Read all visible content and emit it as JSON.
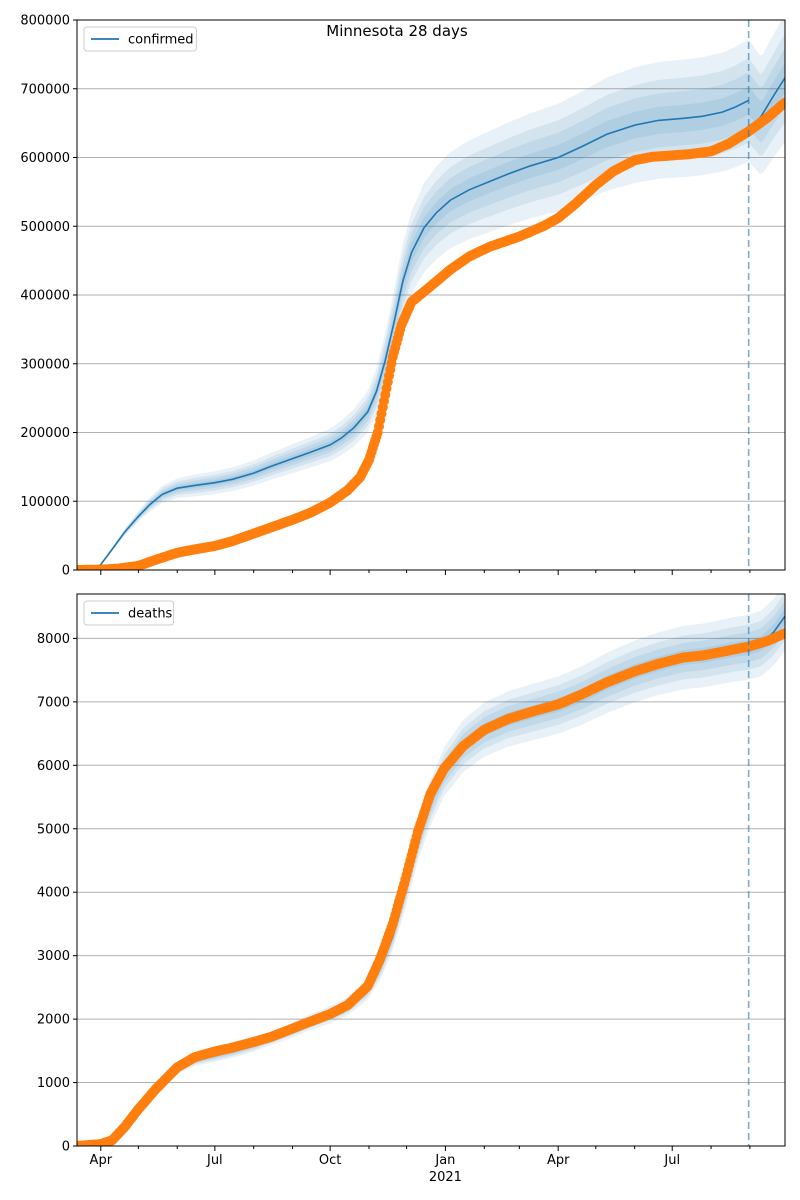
{
  "figure": {
    "title": "Minnesota 28 days"
  },
  "chart_data": [
    {
      "type": "line",
      "panel": "top",
      "legend": "top-left",
      "grid": "horizontal",
      "xlim": [
        "2020-03-13",
        "2021-09-29"
      ],
      "ylim": [
        0,
        800000
      ],
      "yticks": [
        0,
        100000,
        200000,
        300000,
        400000,
        500000,
        600000,
        700000,
        800000
      ],
      "xtick_labels_visible": false,
      "vline": "2021-08-31",
      "series": [
        {
          "name": "confirmed",
          "color": "#1f77b4",
          "kind": "model-line-with-bands",
          "points": [
            [
              "2020-03-13",
              0
            ],
            [
              "2020-03-26",
              1000
            ],
            [
              "2020-04-01",
              8000
            ],
            [
              "2020-04-10",
              30000
            ],
            [
              "2020-04-20",
              55000
            ],
            [
              "2020-05-01",
              78000
            ],
            [
              "2020-05-10",
              95000
            ],
            [
              "2020-05-20",
              110000
            ],
            [
              "2020-06-01",
              119000
            ],
            [
              "2020-06-15",
              123000
            ],
            [
              "2020-07-01",
              127000
            ],
            [
              "2020-07-15",
              132000
            ],
            [
              "2020-08-01",
              141000
            ],
            [
              "2020-08-15",
              151000
            ],
            [
              "2020-09-01",
              162000
            ],
            [
              "2020-09-15",
              171000
            ],
            [
              "2020-10-01",
              182000
            ],
            [
              "2020-10-10",
              192000
            ],
            [
              "2020-10-20",
              207000
            ],
            [
              "2020-10-31",
              230000
            ],
            [
              "2020-11-07",
              260000
            ],
            [
              "2020-11-14",
              305000
            ],
            [
              "2020-11-21",
              360000
            ],
            [
              "2020-11-28",
              420000
            ],
            [
              "2020-12-05",
              462000
            ],
            [
              "2020-12-15",
              498000
            ],
            [
              "2020-12-25",
              520000
            ],
            [
              "2021-01-05",
              538000
            ],
            [
              "2021-01-20",
              553000
            ],
            [
              "2021-02-05",
              565000
            ],
            [
              "2021-02-20",
              576000
            ],
            [
              "2021-03-10",
              588000
            ],
            [
              "2021-04-01",
              600000
            ],
            [
              "2021-04-20",
              616000
            ],
            [
              "2021-05-10",
              634000
            ],
            [
              "2021-06-01",
              647000
            ],
            [
              "2021-06-20",
              654000
            ],
            [
              "2021-07-10",
              657000
            ],
            [
              "2021-07-25",
              660000
            ],
            [
              "2021-08-10",
              666000
            ],
            [
              "2021-08-20",
              673000
            ],
            [
              "2021-08-31",
              683000
            ]
          ],
          "forecast_points": [
            [
              "2021-08-31",
              640000
            ],
            [
              "2021-09-10",
              660000
            ],
            [
              "2021-09-20",
              690000
            ],
            [
              "2021-09-29",
              716000
            ]
          ],
          "band_half_widths_fraction": [
            0.03,
            0.06,
            0.09,
            0.13
          ]
        },
        {
          "name": "",
          "color": "#ff7f0e",
          "kind": "observed-points",
          "points": [
            [
              "2020-03-13",
              0
            ],
            [
              "2020-04-01",
              600
            ],
            [
              "2020-04-15",
              2000
            ],
            [
              "2020-05-01",
              6000
            ],
            [
              "2020-05-15",
              15000
            ],
            [
              "2020-06-01",
              25000
            ],
            [
              "2020-06-15",
              30000
            ],
            [
              "2020-07-01",
              35000
            ],
            [
              "2020-07-15",
              42000
            ],
            [
              "2020-08-01",
              53000
            ],
            [
              "2020-08-15",
              62000
            ],
            [
              "2020-09-01",
              73000
            ],
            [
              "2020-09-15",
              83000
            ],
            [
              "2020-10-01",
              98000
            ],
            [
              "2020-10-15",
              116000
            ],
            [
              "2020-10-25",
              135000
            ],
            [
              "2020-11-01",
              160000
            ],
            [
              "2020-11-08",
              200000
            ],
            [
              "2020-11-14",
              255000
            ],
            [
              "2020-11-20",
              310000
            ],
            [
              "2020-11-27",
              357000
            ],
            [
              "2020-12-05",
              390000
            ],
            [
              "2020-12-15",
              405000
            ],
            [
              "2020-12-25",
              420000
            ],
            [
              "2021-01-05",
              437000
            ],
            [
              "2021-01-20",
              456000
            ],
            [
              "2021-02-05",
              470000
            ],
            [
              "2021-03-01",
              485000
            ],
            [
              "2021-03-20",
              500000
            ],
            [
              "2021-04-01",
              512000
            ],
            [
              "2021-04-15",
              533000
            ],
            [
              "2021-05-01",
              560000
            ],
            [
              "2021-05-15",
              580000
            ],
            [
              "2021-06-01",
              596000
            ],
            [
              "2021-06-15",
              601000
            ],
            [
              "2021-07-01",
              603000
            ],
            [
              "2021-07-15",
              605000
            ],
            [
              "2021-08-01",
              609000
            ],
            [
              "2021-08-15",
              620000
            ],
            [
              "2021-08-31",
              638000
            ],
            [
              "2021-09-15",
              658000
            ],
            [
              "2021-09-29",
              680000
            ]
          ]
        }
      ]
    },
    {
      "type": "line",
      "panel": "bottom",
      "legend": "top-left",
      "grid": "horizontal",
      "xlim": [
        "2020-03-13",
        "2021-09-29"
      ],
      "ylim": [
        0,
        8700
      ],
      "yticks": [
        0,
        1000,
        2000,
        3000,
        4000,
        5000,
        6000,
        7000,
        8000
      ],
      "xticks": [
        {
          "date": "2020-04-01",
          "label": "Apr"
        },
        {
          "date": "2020-07-01",
          "label": "Jul"
        },
        {
          "date": "2020-10-01",
          "label": "Oct"
        },
        {
          "date": "2021-01-01",
          "label": "Jan"
        },
        {
          "date": "2021-04-01",
          "label": "Apr"
        },
        {
          "date": "2021-07-01",
          "label": "Jul"
        }
      ],
      "year_label": "2021",
      "vline": "2021-08-31",
      "series": [
        {
          "name": "deaths",
          "color": "#1f77b4",
          "kind": "model-line-with-bands",
          "points": [
            [
              "2020-03-13",
              0
            ],
            [
              "2020-04-01",
              30
            ],
            [
              "2020-04-10",
              100
            ],
            [
              "2020-04-20",
              300
            ],
            [
              "2020-05-01",
              600
            ],
            [
              "2020-05-15",
              900
            ],
            [
              "2020-06-01",
              1200
            ],
            [
              "2020-06-15",
              1350
            ],
            [
              "2020-07-01",
              1420
            ],
            [
              "2020-07-15",
              1490
            ],
            [
              "2020-08-01",
              1590
            ],
            [
              "2020-08-15",
              1700
            ],
            [
              "2020-09-01",
              1830
            ],
            [
              "2020-09-15",
              1950
            ],
            [
              "2020-10-01",
              2070
            ],
            [
              "2020-10-15",
              2200
            ],
            [
              "2020-10-31",
              2470
            ],
            [
              "2020-11-10",
              2800
            ],
            [
              "2020-11-20",
              3300
            ],
            [
              "2020-11-30",
              4000
            ],
            [
              "2020-12-10",
              4800
            ],
            [
              "2020-12-20",
              5400
            ],
            [
              "2020-12-31",
              5900
            ],
            [
              "2021-01-15",
              6300
            ],
            [
              "2021-02-01",
              6560
            ],
            [
              "2021-02-20",
              6730
            ],
            [
              "2021-03-10",
              6830
            ],
            [
              "2021-04-01",
              6950
            ],
            [
              "2021-04-20",
              7100
            ],
            [
              "2021-05-10",
              7300
            ],
            [
              "2021-06-01",
              7480
            ],
            [
              "2021-06-20",
              7600
            ],
            [
              "2021-07-10",
              7700
            ],
            [
              "2021-07-25",
              7730
            ],
            [
              "2021-08-10",
              7790
            ],
            [
              "2021-08-20",
              7830
            ],
            [
              "2021-08-31",
              7860
            ]
          ],
          "forecast_points": [
            [
              "2021-08-31",
              7860
            ],
            [
              "2021-09-10",
              7920
            ],
            [
              "2021-09-20",
              8100
            ],
            [
              "2021-09-29",
              8350
            ]
          ],
          "band_half_widths_fraction": [
            0.015,
            0.03,
            0.045,
            0.065
          ]
        },
        {
          "name": "",
          "color": "#ff7f0e",
          "kind": "observed-points",
          "points": [
            [
              "2020-03-13",
              0
            ],
            [
              "2020-04-01",
              30
            ],
            [
              "2020-04-10",
              90
            ],
            [
              "2020-04-20",
              300
            ],
            [
              "2020-05-01",
              580
            ],
            [
              "2020-05-15",
              900
            ],
            [
              "2020-06-01",
              1240
            ],
            [
              "2020-06-15",
              1400
            ],
            [
              "2020-07-01",
              1490
            ],
            [
              "2020-07-15",
              1550
            ],
            [
              "2020-08-01",
              1640
            ],
            [
              "2020-08-15",
              1720
            ],
            [
              "2020-09-01",
              1850
            ],
            [
              "2020-09-15",
              1960
            ],
            [
              "2020-10-01",
              2080
            ],
            [
              "2020-10-15",
              2220
            ],
            [
              "2020-10-31",
              2520
            ],
            [
              "2020-11-10",
              2950
            ],
            [
              "2020-11-20",
              3500
            ],
            [
              "2020-11-30",
              4200
            ],
            [
              "2020-12-10",
              4950
            ],
            [
              "2020-12-20",
              5550
            ],
            [
              "2020-12-31",
              5950
            ],
            [
              "2021-01-15",
              6300
            ],
            [
              "2021-02-01",
              6560
            ],
            [
              "2021-02-20",
              6730
            ],
            [
              "2021-03-10",
              6840
            ],
            [
              "2021-04-01",
              6960
            ],
            [
              "2021-04-20",
              7120
            ],
            [
              "2021-05-10",
              7310
            ],
            [
              "2021-06-01",
              7480
            ],
            [
              "2021-06-20",
              7600
            ],
            [
              "2021-07-10",
              7700
            ],
            [
              "2021-07-25",
              7730
            ],
            [
              "2021-08-10",
              7790
            ],
            [
              "2021-08-20",
              7830
            ],
            [
              "2021-08-31",
              7870
            ],
            [
              "2021-09-15",
              7960
            ],
            [
              "2021-09-29",
              8080
            ]
          ]
        }
      ]
    }
  ]
}
